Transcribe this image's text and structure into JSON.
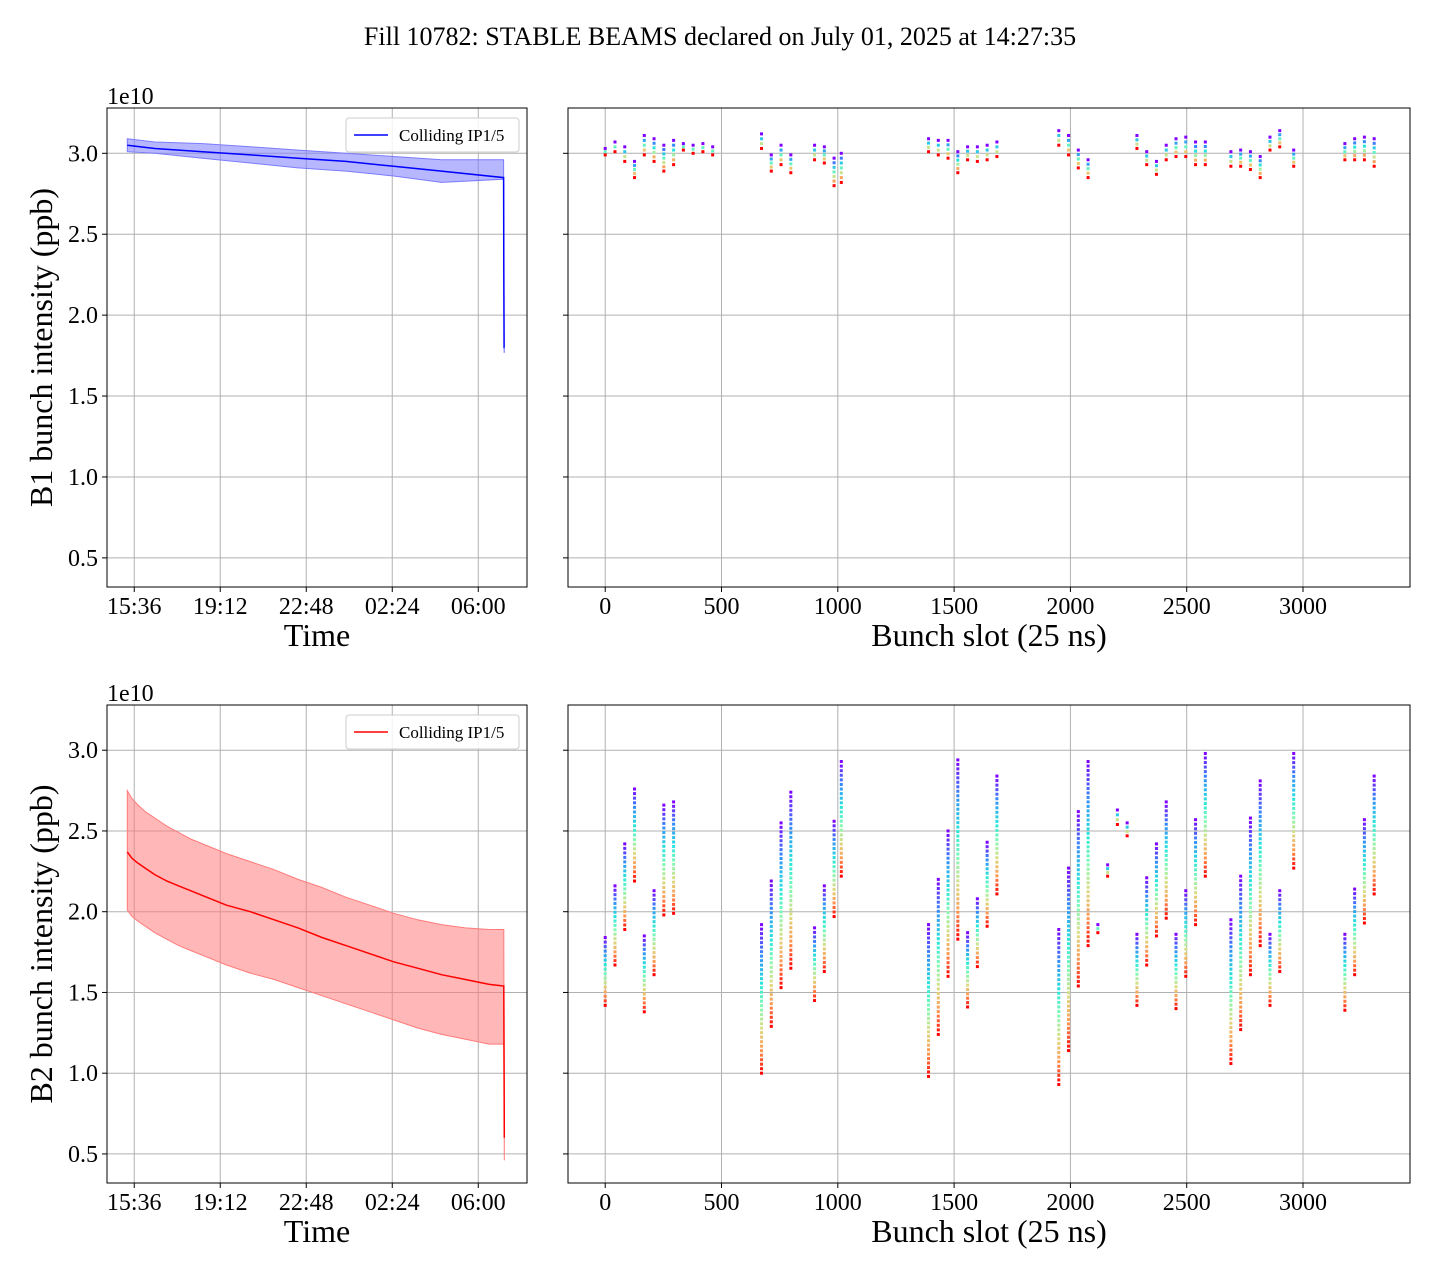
{
  "figure": {
    "title": "Fill 10782: STABLE BEAMS declared on July 01, 2025 at 14:27:35"
  },
  "colors": {
    "b1_line": "#0000ff",
    "b1_band": "#7b7bff",
    "b2_line": "#ff0000",
    "b2_band": "#ff7b7b",
    "grid": "#b0b0b0",
    "spine": "#000000"
  },
  "chart_data": [
    {
      "id": "b1_time",
      "type": "line",
      "title": "",
      "xlabel": "Time",
      "ylabel": "B1 bunch intensity (ppb)",
      "y_offset_label": "1e10",
      "x_unit": "hours since 14:27:35 (July 01, 2025)",
      "xlim": [
        0.0,
        17.58
      ],
      "ylim": [
        0.32,
        3.28
      ],
      "xticks": [
        1.14,
        4.74,
        8.34,
        11.94,
        15.54
      ],
      "xticklabels": [
        "15:36",
        "19:12",
        "22:48",
        "02:24",
        "06:00"
      ],
      "yticks": [
        0.5,
        1.0,
        1.5,
        2.0,
        2.5,
        3.0
      ],
      "yticklabels": [
        "0.5",
        "1.0",
        "1.5",
        "2.0",
        "2.5",
        "3.0"
      ],
      "grid": true,
      "legend": {
        "position": "upper right",
        "entries": [
          "Colliding IP1/5"
        ]
      },
      "series": [
        {
          "name": "Colliding IP1/5",
          "x": [
            0.85,
            2.0,
            4.0,
            6.0,
            8.0,
            10.0,
            12.0,
            14.0,
            16.6,
            16.61,
            16.62,
            16.63
          ],
          "mean": [
            3.05,
            3.03,
            3.01,
            2.99,
            2.97,
            2.95,
            2.92,
            2.89,
            2.85,
            2.3,
            1.8,
            1.8
          ],
          "upper": [
            3.09,
            3.07,
            3.06,
            3.04,
            3.02,
            3.0,
            2.98,
            2.96,
            2.96,
            2.3,
            1.8,
            1.8
          ],
          "lower": [
            3.01,
            3.0,
            2.97,
            2.94,
            2.91,
            2.89,
            2.86,
            2.82,
            2.84,
            2.3,
            1.77,
            1.77
          ]
        }
      ]
    },
    {
      "id": "b1_slots",
      "type": "scatter",
      "title": "",
      "xlabel": "Bunch slot (25 ns)",
      "ylabel": "",
      "xlim": [
        -160,
        3460
      ],
      "ylim": [
        0.32,
        3.28
      ],
      "xticks": [
        0,
        500,
        1000,
        1500,
        2000,
        2500,
        3000
      ],
      "xticklabels": [
        "0",
        "500",
        "1000",
        "1500",
        "2000",
        "2500",
        "3000"
      ],
      "yticks": [
        0.5,
        1.0,
        1.5,
        2.0,
        2.5,
        3.0
      ],
      "grid": true,
      "colormap": "rainbow (purple = start of fill, red = end of fill)",
      "series": [
        {
          "name": "",
          "x": [
            0,
            42,
            84,
            126,
            168,
            210,
            252,
            294,
            336,
            378,
            420,
            462,
            672,
            714,
            756,
            798,
            900,
            942,
            984,
            1015,
            1390,
            1432,
            1474,
            1516,
            1558,
            1600,
            1642,
            1684,
            1950,
            1992,
            2034,
            2076,
            2286,
            2328,
            2370,
            2412,
            2454,
            2496,
            2538,
            2580,
            2690,
            2732,
            2774,
            2816,
            2858,
            2900,
            2960,
            3180,
            3222,
            3264,
            3306
          ],
          "top": [
            3.03,
            3.07,
            3.04,
            2.95,
            3.11,
            3.09,
            3.05,
            3.08,
            3.06,
            3.05,
            3.06,
            3.04,
            3.12,
            2.99,
            3.05,
            2.99,
            3.05,
            3.04,
            2.97,
            3.0,
            3.09,
            3.08,
            3.08,
            3.01,
            3.04,
            3.04,
            3.05,
            3.07,
            3.14,
            3.11,
            3.02,
            2.96,
            3.11,
            3.01,
            2.95,
            3.05,
            3.09,
            3.1,
            3.07,
            3.07,
            3.01,
            3.02,
            3.01,
            2.98,
            3.1,
            3.14,
            3.02,
            3.06,
            3.09,
            3.1,
            3.09
          ],
          "bottom": [
            2.99,
            3.01,
            2.95,
            2.85,
            2.99,
            2.95,
            2.89,
            2.93,
            3.02,
            3.0,
            3.01,
            2.99,
            3.03,
            2.89,
            2.93,
            2.88,
            2.96,
            2.94,
            2.8,
            2.82,
            3.01,
            2.99,
            2.97,
            2.88,
            2.96,
            2.95,
            2.96,
            2.98,
            3.05,
            2.99,
            2.91,
            2.85,
            3.03,
            2.93,
            2.87,
            2.96,
            2.98,
            2.98,
            2.93,
            2.93,
            2.92,
            2.92,
            2.9,
            2.85,
            3.02,
            3.04,
            2.92,
            2.96,
            2.96,
            2.96,
            2.92
          ]
        }
      ]
    },
    {
      "id": "b2_time",
      "type": "line",
      "title": "",
      "xlabel": "Time",
      "ylabel": "B2 bunch intensity (ppb)",
      "y_offset_label": "1e10",
      "x_unit": "hours since 14:27:35 (July 01, 2025)",
      "xlim": [
        0.0,
        17.58
      ],
      "ylim": [
        0.32,
        3.28
      ],
      "xticks": [
        1.14,
        4.74,
        8.34,
        11.94,
        15.54
      ],
      "xticklabels": [
        "15:36",
        "19:12",
        "22:48",
        "02:24",
        "06:00"
      ],
      "yticks": [
        0.5,
        1.0,
        1.5,
        2.0,
        2.5,
        3.0
      ],
      "yticklabels": [
        "0.5",
        "1.0",
        "1.5",
        "2.0",
        "2.5",
        "3.0"
      ],
      "grid": true,
      "legend": {
        "position": "upper right",
        "entries": [
          "Colliding IP1/5"
        ]
      },
      "series": [
        {
          "name": "Colliding IP1/5",
          "x": [
            0.85,
            1.05,
            1.3,
            1.6,
            2.0,
            2.5,
            3.0,
            3.5,
            4.0,
            5.0,
            6.0,
            7.0,
            8.0,
            9.0,
            10.0,
            11.0,
            12.0,
            13.0,
            14.0,
            15.0,
            16.0,
            16.61,
            16.62,
            16.63
          ],
          "mean": [
            2.37,
            2.33,
            2.3,
            2.27,
            2.23,
            2.19,
            2.16,
            2.13,
            2.1,
            2.04,
            2.0,
            1.95,
            1.9,
            1.84,
            1.79,
            1.74,
            1.69,
            1.65,
            1.61,
            1.58,
            1.55,
            1.54,
            1.0,
            0.6
          ],
          "upper": [
            2.75,
            2.7,
            2.66,
            2.62,
            2.58,
            2.53,
            2.49,
            2.45,
            2.42,
            2.36,
            2.31,
            2.26,
            2.2,
            2.15,
            2.09,
            2.04,
            1.99,
            1.95,
            1.92,
            1.9,
            1.89,
            1.89,
            1.0,
            0.6
          ],
          "lower": [
            2.01,
            1.97,
            1.94,
            1.91,
            1.87,
            1.83,
            1.79,
            1.76,
            1.73,
            1.67,
            1.62,
            1.58,
            1.53,
            1.48,
            1.43,
            1.38,
            1.33,
            1.28,
            1.24,
            1.21,
            1.18,
            1.18,
            0.85,
            0.46
          ]
        }
      ]
    },
    {
      "id": "b2_slots",
      "type": "scatter",
      "title": "",
      "xlabel": "Bunch slot (25 ns)",
      "ylabel": "",
      "xlim": [
        -160,
        3460
      ],
      "ylim": [
        0.32,
        3.28
      ],
      "xticks": [
        0,
        500,
        1000,
        1500,
        2000,
        2500,
        3000
      ],
      "xticklabels": [
        "0",
        "500",
        "1000",
        "1500",
        "2000",
        "2500",
        "3000"
      ],
      "yticks": [
        0.5,
        1.0,
        1.5,
        2.0,
        2.5,
        3.0
      ],
      "grid": true,
      "colormap": "rainbow (purple = start of fill, red = end of fill)",
      "series": [
        {
          "name": "",
          "x": [
            0,
            42,
            84,
            126,
            168,
            210,
            252,
            294,
            672,
            714,
            756,
            798,
            900,
            942,
            984,
            1015,
            1390,
            1432,
            1474,
            1516,
            1558,
            1600,
            1642,
            1684,
            1950,
            1992,
            2034,
            2076,
            2118,
            2160,
            2202,
            2244,
            2286,
            2328,
            2370,
            2412,
            2454,
            2496,
            2538,
            2580,
            2690,
            2732,
            2774,
            2816,
            2858,
            2900,
            2960,
            3180,
            3222,
            3264,
            3306
          ],
          "top": [
            1.84,
            2.16,
            2.42,
            2.76,
            1.85,
            2.13,
            2.66,
            2.68,
            1.92,
            2.19,
            2.55,
            2.74,
            1.9,
            2.16,
            2.56,
            2.93,
            1.92,
            2.2,
            2.5,
            2.94,
            1.87,
            2.08,
            2.43,
            2.84,
            1.89,
            2.27,
            2.62,
            2.93,
            1.92,
            2.29,
            2.63,
            2.55,
            1.86,
            2.21,
            2.42,
            2.68,
            1.86,
            2.13,
            2.57,
            2.98,
            1.95,
            2.22,
            2.58,
            2.81,
            1.86,
            2.13,
            2.98,
            1.86,
            2.14,
            2.57,
            2.84
          ],
          "bottom": [
            1.42,
            1.67,
            1.89,
            2.19,
            1.38,
            1.61,
            1.98,
            1.99,
            1.0,
            1.29,
            1.53,
            1.65,
            1.45,
            1.63,
            1.97,
            2.22,
            0.98,
            1.24,
            1.6,
            1.83,
            1.41,
            1.66,
            1.91,
            2.11,
            0.93,
            1.14,
            1.54,
            1.79,
            1.87,
            2.22,
            2.54,
            2.47,
            1.42,
            1.67,
            1.85,
            1.96,
            1.4,
            1.6,
            1.92,
            2.22,
            1.06,
            1.27,
            1.61,
            1.79,
            1.42,
            1.63,
            2.27,
            1.39,
            1.61,
            1.93,
            2.11
          ]
        }
      ]
    }
  ]
}
